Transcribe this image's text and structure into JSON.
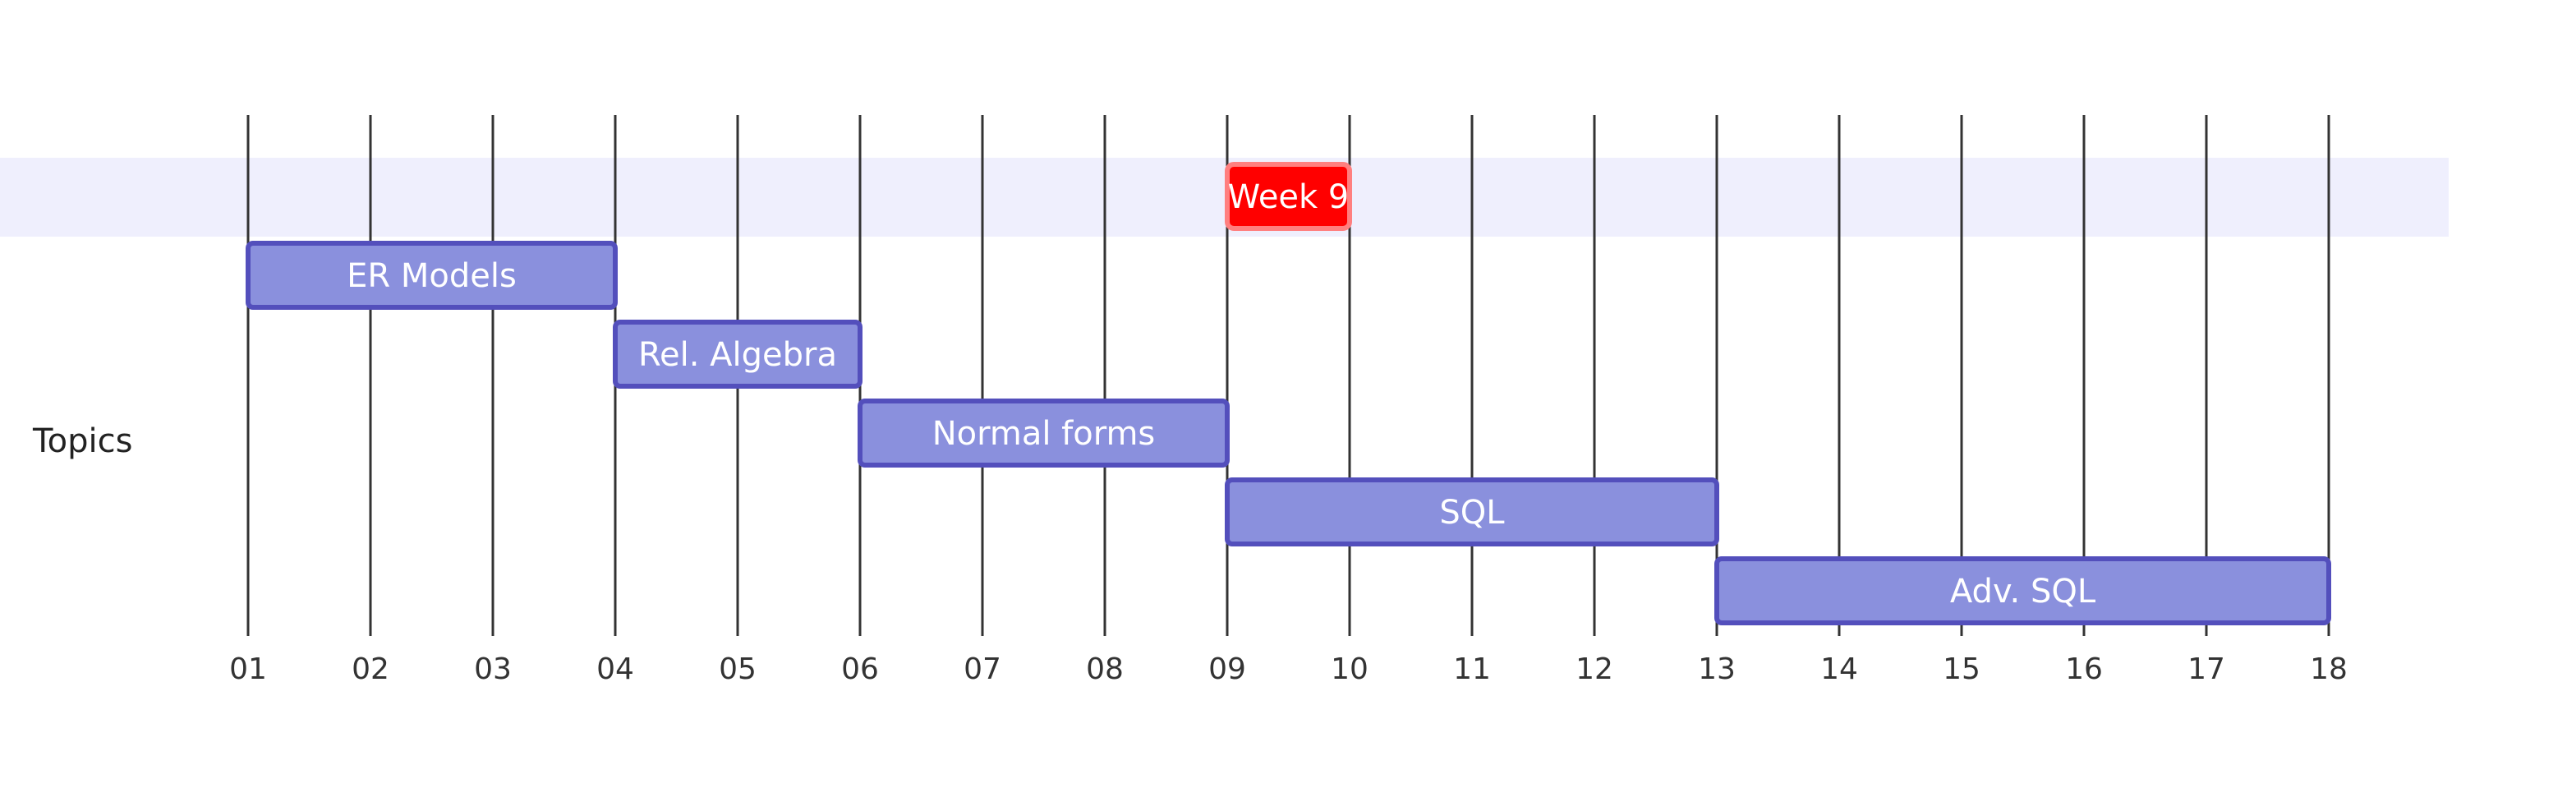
{
  "chart_data": {
    "type": "gantt",
    "title": "",
    "x_ticks": [
      "01",
      "02",
      "03",
      "04",
      "05",
      "06",
      "07",
      "08",
      "09",
      "10",
      "11",
      "12",
      "13",
      "14",
      "15",
      "16",
      "17",
      "18"
    ],
    "xlim": [
      1,
      19
    ],
    "sections": [
      {
        "name": "Topics"
      }
    ],
    "milestones": [
      {
        "label": "Week 9",
        "start": 9,
        "end": 10,
        "color": "#ff0000",
        "border_color": "#ff7f7f"
      }
    ],
    "tasks": [
      {
        "label": "ER Models",
        "start": 1,
        "end": 4,
        "section": "Topics"
      },
      {
        "label": "Rel. Algebra",
        "start": 4,
        "end": 6,
        "section": "Topics"
      },
      {
        "label": "Normal forms",
        "start": 6,
        "end": 9,
        "section": "Topics"
      },
      {
        "label": "SQL",
        "start": 9,
        "end": 13,
        "section": "Topics"
      },
      {
        "label": "Adv. SQL",
        "start": 13,
        "end": 18,
        "section": "Topics"
      }
    ],
    "colors": {
      "task_fill": "#8a90dd",
      "task_border": "#534fbc",
      "band_fill": "#efeffd",
      "grid": "#333333"
    }
  }
}
